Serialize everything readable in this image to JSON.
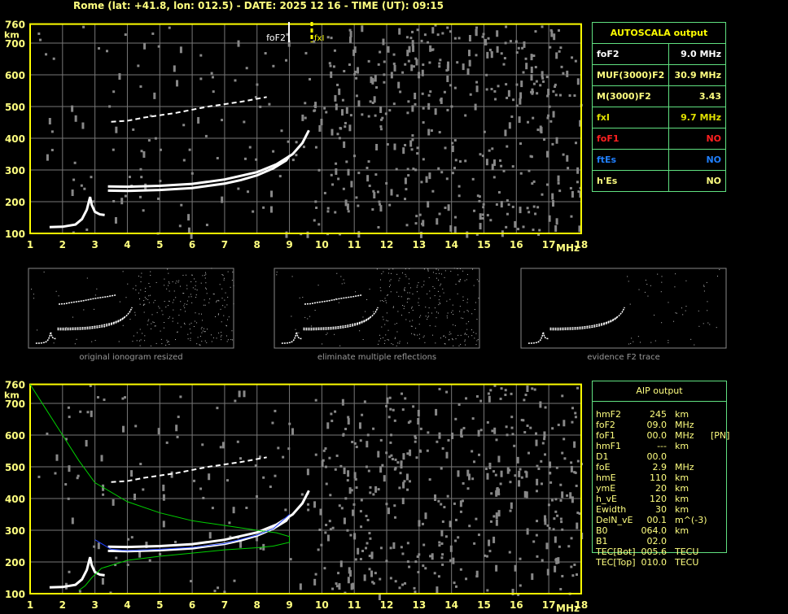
{
  "header": {
    "title": "Rome (lat: +41.8, lon: 012.5) - DATE: 2025 12 16 - TIME (UT): 09:15"
  },
  "autoscala": {
    "title": "AUTOSCALA output",
    "rows": [
      {
        "label": "foF2",
        "value": "9.0 MHz",
        "color": "#ffffff"
      },
      {
        "label": "MUF(3000)F2",
        "value": "30.9 MHz",
        "color": "#ffff80"
      },
      {
        "label": "M(3000)F2",
        "value": "3.43",
        "color": "#ffff80"
      },
      {
        "label": "fxI",
        "value": "9.7 MHz",
        "color": "#e0e000"
      },
      {
        "label": "foF1",
        "value": "NO",
        "color": "#ff2020"
      },
      {
        "label": "ftEs",
        "value": "NO",
        "color": "#2080ff"
      },
      {
        "label": "h'Es",
        "value": "NO",
        "color": "#ffff80"
      }
    ]
  },
  "aip": {
    "title": "AIP output",
    "rows": [
      [
        "hmF2",
        "245",
        "km",
        ""
      ],
      [
        "foF2",
        "09.0",
        "MHz",
        ""
      ],
      [
        "foF1",
        "00.0",
        "MHz",
        "[PN]"
      ],
      [
        "hmF1",
        "---",
        "km",
        ""
      ],
      [
        "D1",
        "00.0",
        "",
        ""
      ],
      [
        "foE",
        "2.9",
        "MHz",
        ""
      ],
      [
        "hmE",
        "110",
        "km",
        ""
      ],
      [
        "ymE",
        "20",
        "km",
        ""
      ],
      [
        "h_vE",
        "120",
        "km",
        ""
      ],
      [
        "Ewidth",
        "30",
        "km",
        ""
      ],
      [
        "DelN_vE",
        "00.1",
        "m^(-3)",
        ""
      ],
      [
        "B0",
        "064.0",
        "km",
        ""
      ],
      [
        "B1",
        "02.0",
        "",
        ""
      ],
      [
        "TEC[Bot]",
        "005.6",
        "TECU",
        ""
      ],
      [
        "TEC[Top]",
        "010.0",
        "TECU",
        ""
      ]
    ]
  },
  "captions": [
    "original ionogram resized",
    "eliminate multiple reflections",
    "evidence F2 trace"
  ],
  "markers": {
    "foF2": "foF2",
    "fxI": "fxI"
  },
  "chart_data": {
    "type": "scatter",
    "xlabel": "MHz",
    "ylabel": "km",
    "xlim": [
      1,
      18
    ],
    "ylim": [
      100,
      760
    ],
    "grid": true,
    "xticks": [
      "1",
      "2",
      "3",
      "4",
      "5",
      "6",
      "7",
      "8",
      "9",
      "10",
      "11",
      "12",
      "13",
      "14",
      "15",
      "16",
      "17",
      "18"
    ],
    "yticks": [
      "100",
      "200",
      "300",
      "400",
      "500",
      "600",
      "700",
      "760"
    ],
    "series": [
      {
        "name": "E trace",
        "color": "#ffffff",
        "x": [
          1.6,
          2.0,
          2.4,
          2.6,
          2.75,
          2.85,
          2.9,
          3.0,
          3.15,
          3.3
        ],
        "y": [
          120,
          121,
          128,
          145,
          175,
          215,
          190,
          168,
          160,
          158
        ]
      },
      {
        "name": "F2 O trace",
        "color": "#ffffff",
        "x": [
          3.4,
          4,
          5,
          6,
          7,
          7.5,
          8,
          8.5,
          8.9,
          9.0
        ],
        "y": [
          235,
          234,
          237,
          243,
          257,
          268,
          283,
          305,
          330,
          345
        ]
      },
      {
        "name": "F2 X trace",
        "color": "#ffffff",
        "x": [
          3.4,
          4,
          5,
          6,
          7,
          8,
          8.6,
          9.1,
          9.4,
          9.6
        ],
        "y": [
          248,
          247,
          250,
          256,
          270,
          293,
          318,
          350,
          385,
          425
        ]
      },
      {
        "name": "multiple",
        "color": "#ffffff",
        "x": [
          3.5,
          4,
          4.5,
          5.5,
          6.5,
          7.5,
          8.3
        ],
        "y": [
          452,
          455,
          465,
          480,
          500,
          515,
          530
        ]
      },
      {
        "name": "AIP profile",
        "color": "#00d000",
        "x": [
          1,
          1.5,
          2,
          2.5,
          3,
          4,
          5,
          6,
          7,
          8,
          8.6,
          9.0,
          9.0,
          8.5,
          8,
          7,
          6,
          5,
          4,
          3.2,
          2.9,
          2.7,
          2.5
        ],
        "y": [
          760,
          680,
          600,
          520,
          450,
          390,
          355,
          330,
          315,
          300,
          292,
          280,
          262,
          250,
          245,
          238,
          228,
          218,
          205,
          180,
          150,
          125,
          110
        ]
      },
      {
        "name": "AIP fit",
        "color": "#2040ff",
        "x": [
          3,
          3.5,
          4,
          5,
          6,
          7,
          8,
          8.5,
          9.0
        ],
        "y": [
          270,
          240,
          236,
          240,
          246,
          258,
          285,
          305,
          350
        ]
      }
    ]
  }
}
